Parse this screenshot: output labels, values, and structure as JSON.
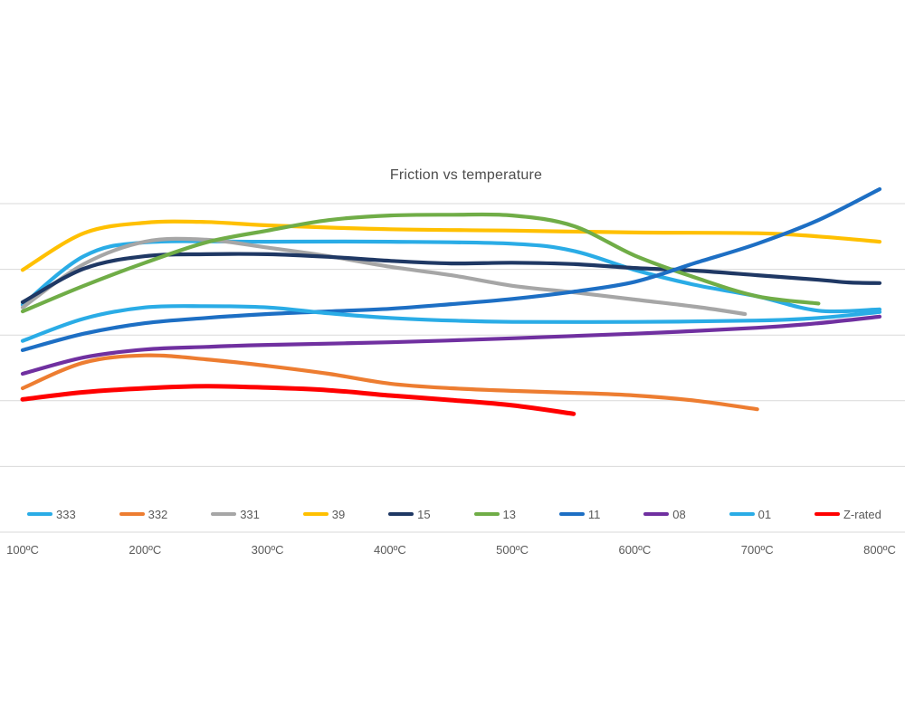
{
  "chart_data": {
    "type": "line",
    "title": "Friction vs temperature",
    "xlabel": "",
    "ylabel": "",
    "x_unit": "ºC",
    "x_tick_labels": [
      "100ºC",
      "200ºC",
      "300ºC",
      "400ºC",
      "500ºC",
      "600ºC",
      "700ºC",
      "800ºC"
    ],
    "x_tick_values": [
      100,
      200,
      300,
      400,
      500,
      600,
      700,
      800
    ],
    "xlim": [
      100,
      800
    ],
    "ylim": [
      0.1,
      0.65
    ],
    "y_axis_labels_visible": false,
    "gridlines": {
      "orientation": "horizontal",
      "values": [
        0.1,
        0.2,
        0.3,
        0.4,
        0.5,
        0.6
      ]
    },
    "legend_position": "bottom",
    "line_style": "smooth",
    "series": [
      {
        "name": "333",
        "color": "#2aace6",
        "x": [
          100,
          150,
          200,
          300,
          400,
          500,
          550,
          600,
          650,
          700,
          750,
          800
        ],
        "values": [
          0.446,
          0.52,
          0.541,
          0.542,
          0.542,
          0.539,
          0.528,
          0.499,
          0.476,
          0.459,
          0.437,
          0.439
        ]
      },
      {
        "name": "332",
        "color": "#ed7d31",
        "x": [
          100,
          150,
          200,
          250,
          300,
          350,
          400,
          450,
          500,
          550,
          600,
          650,
          700
        ],
        "values": [
          0.319,
          0.358,
          0.369,
          0.363,
          0.353,
          0.341,
          0.326,
          0.319,
          0.315,
          0.312,
          0.308,
          0.3,
          0.287
        ]
      },
      {
        "name": "331",
        "color": "#a6a6a6",
        "x": [
          100,
          150,
          200,
          250,
          300,
          350,
          400,
          450,
          500,
          550,
          600,
          650,
          690
        ],
        "values": [
          0.442,
          0.508,
          0.542,
          0.545,
          0.533,
          0.52,
          0.504,
          0.491,
          0.475,
          0.465,
          0.454,
          0.443,
          0.432
        ]
      },
      {
        "name": "39",
        "color": "#ffc000",
        "x": [
          100,
          150,
          200,
          250,
          300,
          400,
          500,
          600,
          700,
          750,
          800
        ],
        "values": [
          0.499,
          0.555,
          0.571,
          0.572,
          0.567,
          0.561,
          0.559,
          0.556,
          0.555,
          0.55,
          0.542
        ]
      },
      {
        "name": "15",
        "color": "#1f3864",
        "x": [
          100,
          150,
          200,
          250,
          300,
          350,
          400,
          450,
          500,
          550,
          600,
          650,
          700,
          750,
          775,
          800
        ],
        "values": [
          0.45,
          0.501,
          0.52,
          0.523,
          0.523,
          0.519,
          0.513,
          0.509,
          0.51,
          0.508,
          0.502,
          0.498,
          0.491,
          0.484,
          0.48,
          0.479
        ]
      },
      {
        "name": "13",
        "color": "#70ad47",
        "x": [
          100,
          150,
          200,
          250,
          300,
          350,
          400,
          450,
          500,
          550,
          600,
          650,
          700,
          750
        ],
        "values": [
          0.436,
          0.475,
          0.51,
          0.541,
          0.559,
          0.575,
          0.582,
          0.583,
          0.582,
          0.566,
          0.521,
          0.487,
          0.459,
          0.448
        ]
      },
      {
        "name": "11",
        "color": "#1d6fc4",
        "x": [
          100,
          150,
          200,
          250,
          300,
          350,
          400,
          450,
          500,
          550,
          600,
          650,
          700,
          750,
          800
        ],
        "values": [
          0.377,
          0.402,
          0.418,
          0.426,
          0.432,
          0.436,
          0.44,
          0.447,
          0.455,
          0.466,
          0.481,
          0.51,
          0.539,
          0.575,
          0.622
        ]
      },
      {
        "name": "08",
        "color": "#7030a0",
        "x": [
          100,
          150,
          200,
          250,
          300,
          400,
          500,
          600,
          700,
          750,
          800
        ],
        "values": [
          0.341,
          0.366,
          0.378,
          0.382,
          0.385,
          0.389,
          0.395,
          0.402,
          0.411,
          0.418,
          0.428
        ]
      },
      {
        "name": "01",
        "color": "#2aace6",
        "x": [
          100,
          150,
          200,
          250,
          300,
          350,
          400,
          450,
          500,
          600,
          700,
          750,
          800
        ],
        "values": [
          0.391,
          0.425,
          0.442,
          0.444,
          0.442,
          0.433,
          0.426,
          0.422,
          0.42,
          0.42,
          0.422,
          0.426,
          0.435
        ]
      },
      {
        "name": "Z-rated",
        "color": "#ff0000",
        "x": [
          100,
          150,
          200,
          250,
          300,
          350,
          400,
          450,
          500,
          550
        ],
        "values": [
          0.302,
          0.313,
          0.319,
          0.322,
          0.32,
          0.316,
          0.308,
          0.301,
          0.293,
          0.28
        ]
      }
    ],
    "colors": {
      "background": "#ffffff",
      "gridline": "#d9d9d9",
      "axis_text": "#595959",
      "title_text": "#4d4d4d"
    }
  }
}
